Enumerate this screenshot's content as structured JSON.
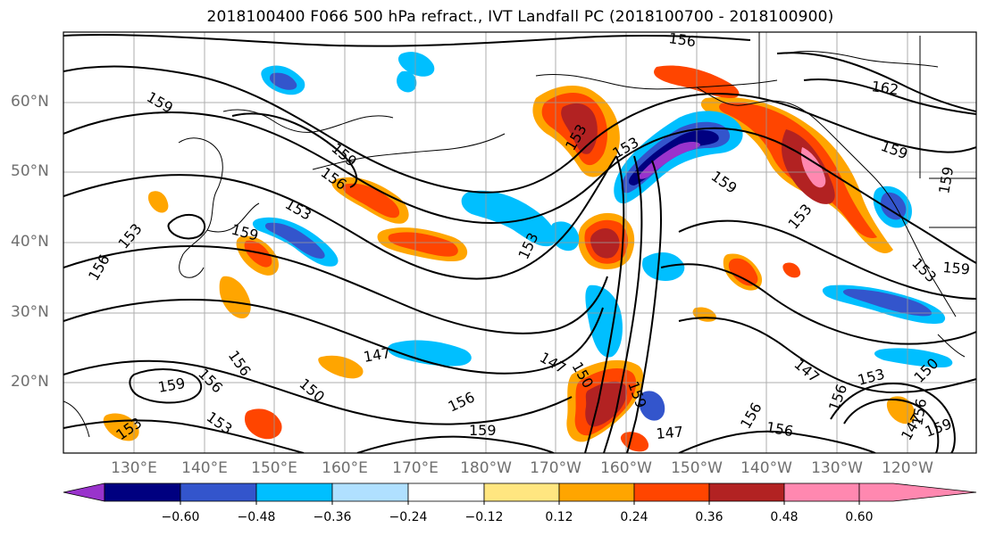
{
  "title": "2018100400 F066 500 hPa refract., IVT Landfall PC (2018100700 - 2018100900)",
  "lat_labels": [
    "60°N",
    "50°N",
    "40°N",
    "30°N",
    "20°N"
  ],
  "lon_labels": [
    "130°E",
    "140°E",
    "150°E",
    "160°E",
    "170°E",
    "180°W",
    "170°W",
    "160°W",
    "150°W",
    "140°W",
    "130°W",
    "120°W"
  ],
  "colorbar": {
    "ticks": [
      "−0.60",
      "−0.48",
      "−0.36",
      "−0.24",
      "−0.12",
      "0.12",
      "0.24",
      "0.36",
      "0.48",
      "0.60"
    ],
    "colors": [
      "#9933cc",
      "#000080",
      "#3355cc",
      "#00bfff",
      "#b0e0ff",
      "#ffffff",
      "#ffe680",
      "#ffa500",
      "#ff4500",
      "#b22222",
      "#ff88b0"
    ]
  },
  "contour_labels": [
    "156",
    "159",
    "162",
    "159",
    "159",
    "156",
    "153",
    "159",
    "153",
    "156",
    "153",
    "159",
    "153",
    "159",
    "153",
    "153",
    "159",
    "159",
    "150",
    "159",
    "156",
    "156",
    "150",
    "147",
    "147",
    "156",
    "159",
    "147",
    "147",
    "153",
    "156",
    "153",
    "156",
    "150",
    "147",
    "156",
    "153",
    "159",
    "156",
    "153"
  ]
}
